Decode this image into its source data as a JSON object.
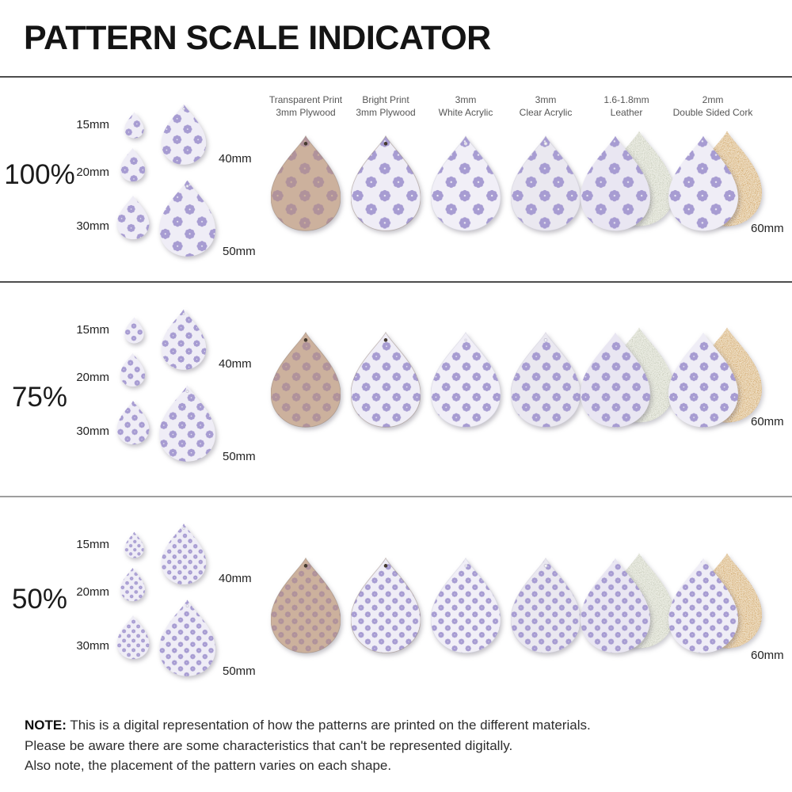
{
  "title": "PATTERN SCALE INDICATOR",
  "rows": [
    {
      "scale_label": "100%"
    },
    {
      "scale_label": "75%"
    },
    {
      "scale_label": "50%"
    }
  ],
  "size_labels": {
    "left": [
      "15mm",
      "20mm",
      "30mm"
    ],
    "right": [
      "40mm",
      "50mm"
    ],
    "large": "60mm"
  },
  "materials": [
    {
      "id": "transparent-print-plywood",
      "lines": [
        "Transparent Print",
        "3mm Plywood"
      ]
    },
    {
      "id": "bright-print-plywood",
      "lines": [
        "Bright Print",
        "3mm Plywood"
      ]
    },
    {
      "id": "white-acrylic",
      "lines": [
        "3mm",
        "White Acrylic"
      ]
    },
    {
      "id": "clear-acrylic",
      "lines": [
        "3mm",
        "Clear Acrylic"
      ]
    },
    {
      "id": "leather",
      "lines": [
        "1.6-1.8mm",
        "Leather"
      ]
    },
    {
      "id": "double-sided-cork",
      "lines": [
        "2mm",
        "Double Sided Cork"
      ]
    }
  ],
  "note": {
    "label": "NOTE:",
    "lines": [
      "This is a digital representation of how the patterns are printed on the different materials.",
      "Please be aware there are some characteristics that can't be represented digitally.",
      "Also note, the placement of the pattern varies on each shape."
    ]
  },
  "colors": {
    "print_flower": "#a79cd2",
    "print_bg": "#efedf6",
    "plywood_bg": "#ccb19d",
    "plywood_flower": "#b0929b",
    "white_acrylic_bg": "#f1eff7",
    "clear_acrylic_bg": "#eae8f0",
    "leather_front_bg": "#e9e6f2",
    "leather_back": "#c9cdbb",
    "cork_back": "#cb9248",
    "divider_dark": "#4d4d4d",
    "divider_light": "#9e9e9e"
  }
}
